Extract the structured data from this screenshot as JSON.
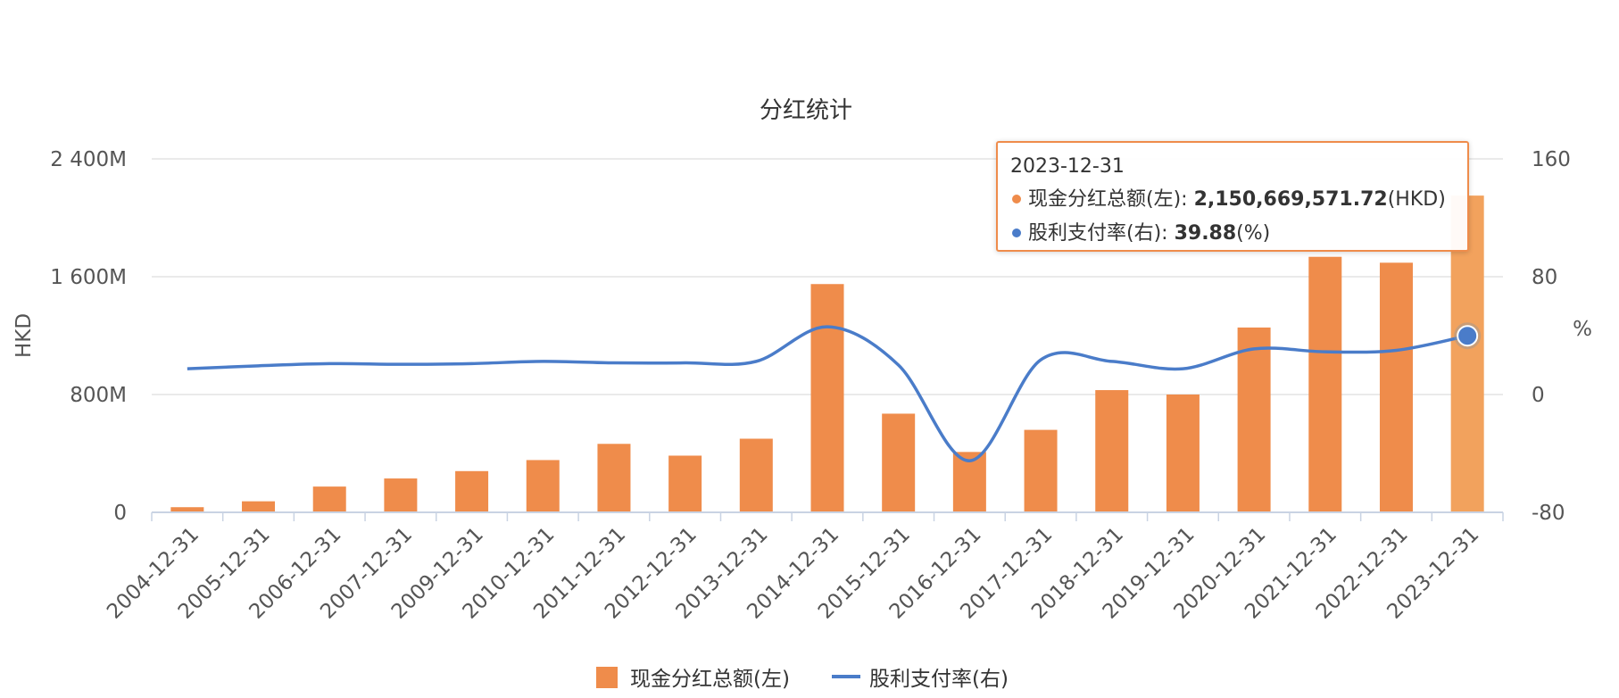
{
  "chart_data": {
    "type": "bar",
    "title": "分红统计",
    "categories": [
      "2004-12-31",
      "2005-12-31",
      "2006-12-31",
      "2007-12-31",
      "2009-12-31",
      "2010-12-31",
      "2011-12-31",
      "2012-12-31",
      "2013-12-31",
      "2014-12-31",
      "2015-12-31",
      "2016-12-31",
      "2017-12-31",
      "2018-12-31",
      "2019-12-31",
      "2020-12-31",
      "2021-12-31",
      "2022-12-31",
      "2023-12-31"
    ],
    "ylabel_left": "HKD",
    "ylabel_right": "%",
    "ylim_left": [
      0,
      2400
    ],
    "ylim_right": [
      -80,
      160
    ],
    "yticks_left": [
      "0",
      "800M",
      "1 600M",
      "2 400M"
    ],
    "yticks_right": [
      "-80",
      "0",
      "80",
      "160"
    ],
    "series": [
      {
        "name": "现金分红总额(左)",
        "type": "bar",
        "axis": "left",
        "color": "#ef8c4b",
        "highlight_color": "#f2a25d",
        "unit": "M HKD",
        "values": [
          35,
          75,
          175,
          230,
          280,
          355,
          465,
          385,
          500,
          1550,
          670,
          410,
          560,
          830,
          800,
          1255,
          1735,
          1695,
          2150.67
        ]
      },
      {
        "name": "股利支付率(右)",
        "type": "line",
        "axis": "right",
        "color": "#4a7cc9",
        "unit": "%",
        "values": [
          17.5,
          19.5,
          21,
          20.5,
          21,
          22.5,
          21.5,
          21.5,
          22.5,
          46,
          20,
          -45,
          23.5,
          22.5,
          17.5,
          31,
          29,
          30,
          39.88
        ]
      }
    ],
    "grid": true,
    "legend": "bottom"
  },
  "tooltip": {
    "date": "2023-12-31",
    "bar_label": "现金分红总额(左): ",
    "bar_value": "2,150,669,571.72",
    "bar_unit": "(HKD)",
    "line_label": "股利支付率(右): ",
    "line_value": "39.88",
    "line_unit": "(%)"
  }
}
